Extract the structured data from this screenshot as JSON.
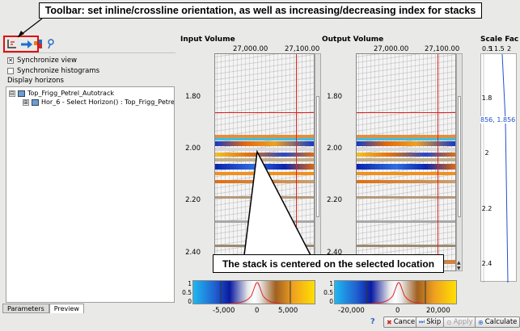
{
  "callouts": {
    "toolbar": "Toolbar: set inline/crossline orientation, as well as increasing/decreasing index for stacks",
    "stack": "The stack is centered on the selected location"
  },
  "left_panel": {
    "sync_view": "Synchronize view",
    "sync_hist": "Synchronize histograms",
    "display_horizons": "Display horizons",
    "tree": [
      {
        "label": "Top_Frigg_Petrel_Autotrack",
        "expander": "⊟"
      },
      {
        "label": "Hor_6 - Select Horizon() : Top_Frigg_Petre",
        "expander": "⊞"
      }
    ],
    "tabs": [
      "Parameters",
      "Preview"
    ]
  },
  "input_panel": {
    "title": "Input Volume",
    "x_ticks": [
      "27,000.00",
      "27,100.00"
    ],
    "y_ticks": [
      "1.80",
      "2.00",
      "2.20",
      "2.40"
    ],
    "colorbar_y": [
      "1",
      "0.5",
      "0"
    ],
    "colorbar_x": [
      "-5,000",
      "0",
      "5,000"
    ]
  },
  "output_panel": {
    "title": "Output Volume",
    "x_ticks": [
      "27,000.00",
      "27,100.00"
    ],
    "y_ticks": [
      "1.80",
      "2.00",
      "2.20",
      "2.40"
    ],
    "colorbar_y": [
      "1",
      "0.5",
      "0"
    ],
    "colorbar_x": [
      "-20,000",
      "0",
      "20,000"
    ]
  },
  "scale_panel": {
    "title": "Scale Fac",
    "x_ticks": [
      "0.5",
      "1",
      "1.5",
      "2"
    ],
    "y_ticks": [
      "1.8",
      "2",
      "2.2",
      "2.4"
    ],
    "readout": "856, 1.856"
  },
  "buttons": {
    "help": "?",
    "cancel": "Cancel",
    "skip": "Skip",
    "apply": "Apply",
    "calculate": "Calculate"
  },
  "colors": {
    "highlight": "#e01010",
    "accent_blue": "#2060d0"
  }
}
